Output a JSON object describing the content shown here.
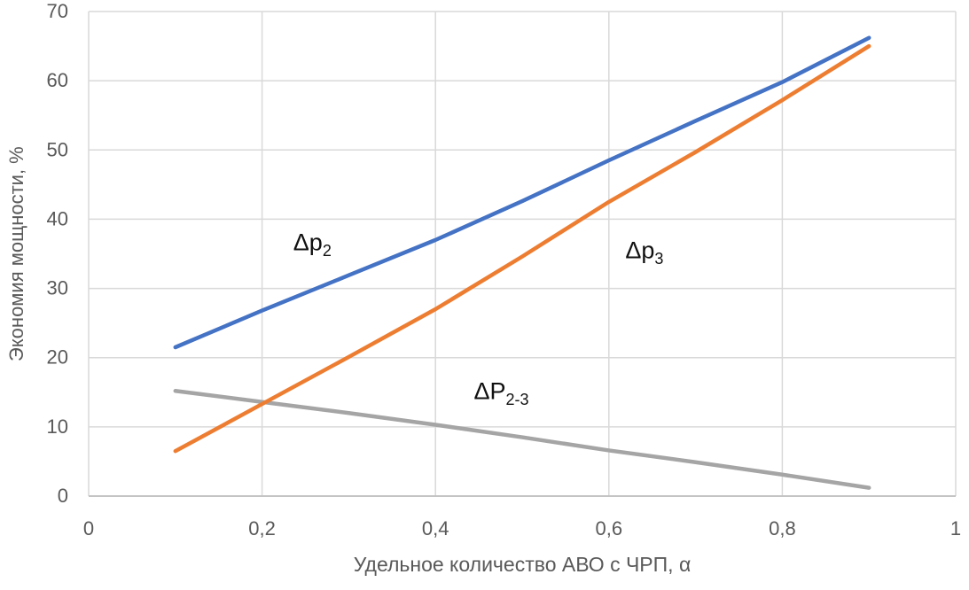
{
  "chart_data": {
    "type": "line",
    "title": "",
    "xlabel": "Удельное количество АВО с ЧРП, α",
    "ylabel": "Экономия мощности, %",
    "xlim": [
      0,
      1
    ],
    "ylim": [
      0,
      70
    ],
    "grid": true,
    "legend_position": "none",
    "x_ticks": [
      0,
      0.2,
      0.4,
      0.6,
      0.8,
      1
    ],
    "x_tick_labels": [
      "0",
      "0,2",
      "0,4",
      "0,6",
      "0,8",
      "1"
    ],
    "y_ticks": [
      0,
      10,
      20,
      30,
      40,
      50,
      60,
      70
    ],
    "y_tick_labels": [
      "0",
      "10",
      "20",
      "30",
      "40",
      "50",
      "60",
      "70"
    ],
    "x": [
      0.1,
      0.2,
      0.3,
      0.4,
      0.5,
      0.6,
      0.7,
      0.8,
      0.9
    ],
    "series": [
      {
        "name": "ΔP2-3",
        "label_base": "ΔP",
        "label_sub": "2-3",
        "color": "#A5A5A5",
        "values": [
          15.2,
          13.6,
          12.0,
          10.3,
          8.5,
          6.6,
          4.9,
          3.1,
          1.2
        ]
      },
      {
        "name": "Δp3",
        "label_base": "Δp",
        "label_sub": "3",
        "color": "#ED7D31",
        "values": [
          6.5,
          13.3,
          20.1,
          27.0,
          34.6,
          42.5,
          49.7,
          57.2,
          65.0
        ]
      },
      {
        "name": "Δp2",
        "label_base": "Δp",
        "label_sub": "2",
        "color": "#4472C4",
        "values": [
          21.5,
          26.8,
          31.9,
          37.0,
          42.6,
          48.5,
          54.2,
          59.8,
          66.2
        ]
      }
    ],
    "annotations": [
      {
        "label_base": "Δp",
        "label_sub": "2",
        "x": 0.258,
        "y": 36.6,
        "series": "Δp2"
      },
      {
        "label_base": "Δp",
        "label_sub": "3",
        "x": 0.641,
        "y": 35.4,
        "series": "Δp3"
      },
      {
        "label_base": "ΔP",
        "label_sub": "2-3",
        "x": 0.476,
        "y": 15.1,
        "series": "ΔP2-3"
      }
    ],
    "colors": {
      "gridline": "#D9D9D9",
      "axis_line": "#BFBFBF",
      "tick_text": "#595959",
      "annotation_text": "#111111"
    }
  }
}
